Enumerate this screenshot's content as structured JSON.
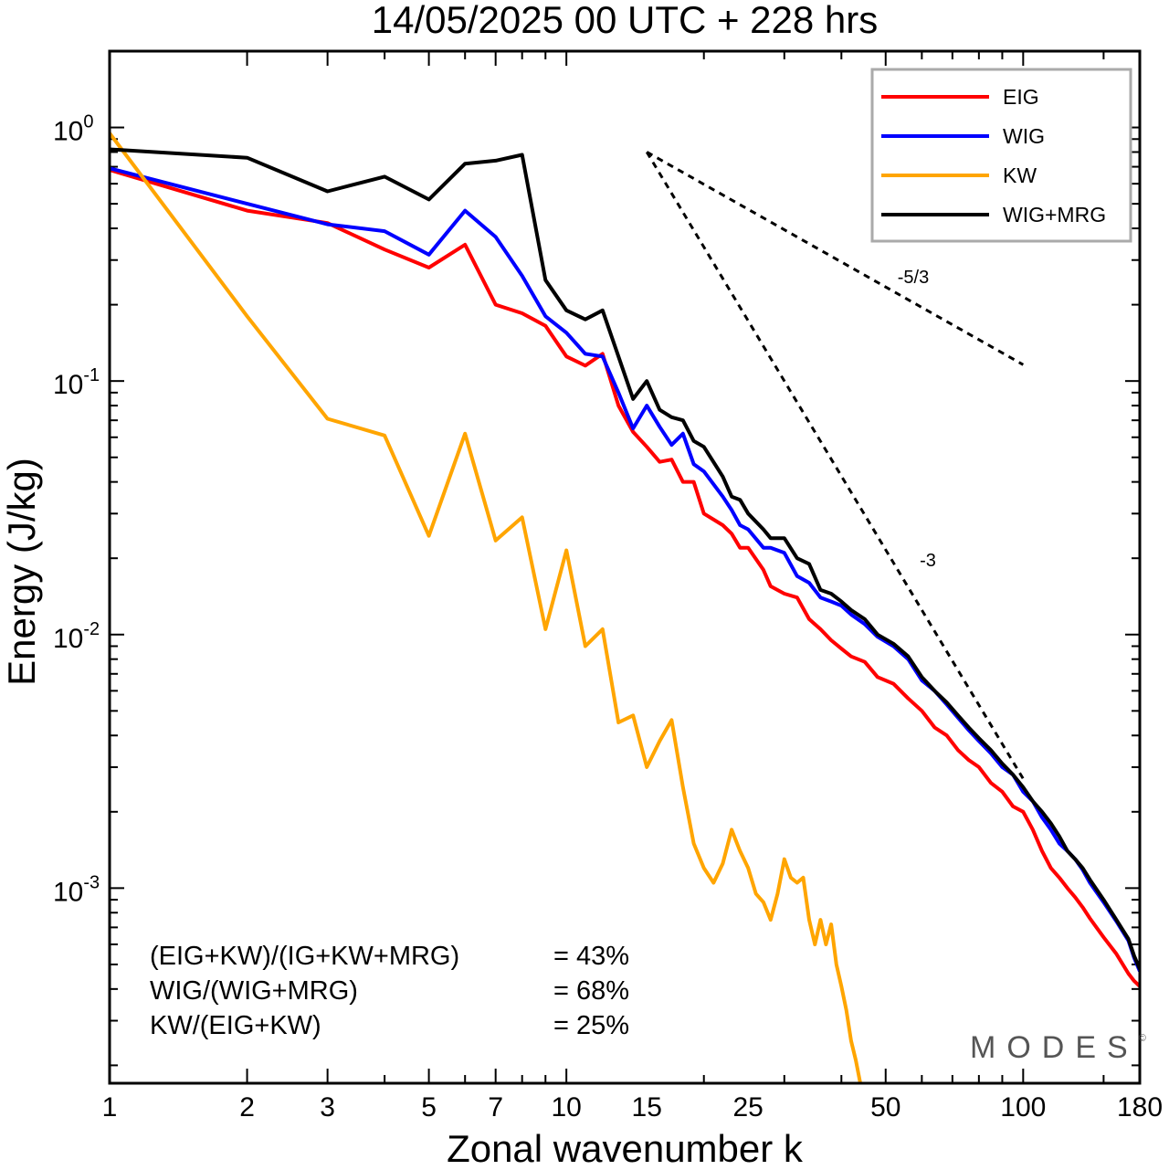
{
  "chart_data": {
    "type": "line",
    "title": "14/05/2025  00 UTC  + 228 hrs",
    "xlabel": "Zonal wavenumber k",
    "ylabel": "Energy (J/kg)",
    "xscale": "log",
    "yscale": "log",
    "xlim": [
      1,
      180
    ],
    "ylim": [
      0.00017,
      2.0
    ],
    "xticks": [
      1,
      2,
      3,
      5,
      7,
      10,
      15,
      25,
      50,
      100,
      180
    ],
    "yticks": [
      {
        "value": 1,
        "base": "10",
        "exp": "0"
      },
      {
        "value": 0.1,
        "base": "10",
        "exp": "-1"
      },
      {
        "value": 0.01,
        "base": "10",
        "exp": "-2"
      },
      {
        "value": 0.001,
        "base": "10",
        "exp": "-3"
      }
    ],
    "legend_position": "top-right",
    "series": [
      {
        "name": "EIG",
        "color": "#ff0000",
        "points": [
          [
            1,
            0.68
          ],
          [
            2,
            0.47
          ],
          [
            3,
            0.42
          ],
          [
            4,
            0.33
          ],
          [
            5,
            0.28
          ],
          [
            6,
            0.345
          ],
          [
            7,
            0.2
          ],
          [
            8,
            0.185
          ],
          [
            9,
            0.165
          ],
          [
            10,
            0.125
          ],
          [
            11,
            0.115
          ],
          [
            12,
            0.128
          ],
          [
            13,
            0.08
          ],
          [
            14,
            0.063
          ],
          [
            15,
            0.055
          ],
          [
            16,
            0.048
          ],
          [
            17,
            0.049
          ],
          [
            18,
            0.04
          ],
          [
            19,
            0.04
          ],
          [
            20,
            0.03
          ],
          [
            22,
            0.027
          ],
          [
            23,
            0.025
          ],
          [
            24,
            0.022
          ],
          [
            25,
            0.022
          ],
          [
            27,
            0.018
          ],
          [
            28,
            0.0155
          ],
          [
            30,
            0.0145
          ],
          [
            32,
            0.014
          ],
          [
            34,
            0.0115
          ],
          [
            36,
            0.0105
          ],
          [
            38,
            0.0095
          ],
          [
            40,
            0.0088
          ],
          [
            42,
            0.0082
          ],
          [
            45,
            0.0078
          ],
          [
            48,
            0.0068
          ],
          [
            52,
            0.0064
          ],
          [
            56,
            0.0056
          ],
          [
            60,
            0.005
          ],
          [
            64,
            0.0043
          ],
          [
            68,
            0.004
          ],
          [
            72,
            0.0035
          ],
          [
            76,
            0.0032
          ],
          [
            80,
            0.003
          ],
          [
            85,
            0.0026
          ],
          [
            90,
            0.0024
          ],
          [
            95,
            0.0021
          ],
          [
            100,
            0.002
          ],
          [
            105,
            0.0017
          ],
          [
            110,
            0.0014
          ],
          [
            115,
            0.0012
          ],
          [
            120,
            0.0011
          ],
          [
            125,
            0.001
          ],
          [
            130,
            0.00092
          ],
          [
            135,
            0.00084
          ],
          [
            140,
            0.00076
          ],
          [
            150,
            0.00064
          ],
          [
            160,
            0.00055
          ],
          [
            170,
            0.00046
          ],
          [
            175,
            0.00043
          ],
          [
            180,
            0.00041
          ]
        ]
      },
      {
        "name": "WIG",
        "color": "#0000ff",
        "points": [
          [
            1,
            0.69
          ],
          [
            2,
            0.5
          ],
          [
            3,
            0.415
          ],
          [
            4,
            0.39
          ],
          [
            5,
            0.315
          ],
          [
            6,
            0.47
          ],
          [
            7,
            0.37
          ],
          [
            8,
            0.26
          ],
          [
            9,
            0.18
          ],
          [
            10,
            0.155
          ],
          [
            11,
            0.128
          ],
          [
            12,
            0.125
          ],
          [
            13,
            0.09
          ],
          [
            14,
            0.065
          ],
          [
            15,
            0.08
          ],
          [
            16,
            0.066
          ],
          [
            17,
            0.056
          ],
          [
            18,
            0.062
          ],
          [
            19,
            0.047
          ],
          [
            20,
            0.044
          ],
          [
            22,
            0.035
          ],
          [
            23,
            0.031
          ],
          [
            24,
            0.027
          ],
          [
            25,
            0.026
          ],
          [
            27,
            0.022
          ],
          [
            28,
            0.022
          ],
          [
            30,
            0.021
          ],
          [
            32,
            0.017
          ],
          [
            34,
            0.016
          ],
          [
            36,
            0.014
          ],
          [
            38,
            0.0135
          ],
          [
            40,
            0.013
          ],
          [
            42,
            0.012
          ],
          [
            45,
            0.011
          ],
          [
            48,
            0.0098
          ],
          [
            52,
            0.009
          ],
          [
            56,
            0.008
          ],
          [
            60,
            0.0066
          ],
          [
            64,
            0.006
          ],
          [
            68,
            0.0053
          ],
          [
            72,
            0.0047
          ],
          [
            76,
            0.0042
          ],
          [
            80,
            0.0038
          ],
          [
            85,
            0.0034
          ],
          [
            90,
            0.003
          ],
          [
            95,
            0.0028
          ],
          [
            100,
            0.0024
          ],
          [
            105,
            0.0022
          ],
          [
            110,
            0.0019
          ],
          [
            115,
            0.0017
          ],
          [
            120,
            0.0015
          ],
          [
            125,
            0.0014
          ],
          [
            130,
            0.0013
          ],
          [
            135,
            0.00118
          ],
          [
            140,
            0.00105
          ],
          [
            150,
            0.00088
          ],
          [
            160,
            0.00074
          ],
          [
            170,
            0.00062
          ],
          [
            175,
            0.00053
          ],
          [
            180,
            0.00047
          ]
        ]
      },
      {
        "name": "KW",
        "color": "#ffa500",
        "points": [
          [
            1,
            0.95
          ],
          [
            2,
            0.18
          ],
          [
            3,
            0.071
          ],
          [
            4,
            0.061
          ],
          [
            5,
            0.0245
          ],
          [
            6,
            0.062
          ],
          [
            7,
            0.0235
          ],
          [
            8,
            0.029
          ],
          [
            9,
            0.0105
          ],
          [
            10,
            0.0215
          ],
          [
            11,
            0.009
          ],
          [
            12,
            0.0105
          ],
          [
            13,
            0.0045
          ],
          [
            14,
            0.0048
          ],
          [
            15,
            0.003
          ],
          [
            16,
            0.0038
          ],
          [
            17,
            0.0046
          ],
          [
            18,
            0.0025
          ],
          [
            19,
            0.0015
          ],
          [
            20,
            0.0012
          ],
          [
            21,
            0.00105
          ],
          [
            22,
            0.00125
          ],
          [
            23,
            0.0017
          ],
          [
            24,
            0.0014
          ],
          [
            25,
            0.0012
          ],
          [
            26,
            0.00095
          ],
          [
            27,
            0.00088
          ],
          [
            28,
            0.00075
          ],
          [
            29,
            0.00095
          ],
          [
            30,
            0.0013
          ],
          [
            31,
            0.0011
          ],
          [
            32,
            0.00105
          ],
          [
            33,
            0.0011
          ],
          [
            34,
            0.00075
          ],
          [
            35,
            0.0006
          ],
          [
            36,
            0.00075
          ],
          [
            37,
            0.0006
          ],
          [
            38,
            0.00072
          ],
          [
            39,
            0.0005
          ],
          [
            40,
            0.00041
          ],
          [
            41,
            0.00033
          ],
          [
            42,
            0.00025
          ],
          [
            43,
            0.00021
          ],
          [
            44,
            0.00017
          ]
        ]
      },
      {
        "name": "WIG+MRG",
        "color": "#000000",
        "points": [
          [
            1,
            0.82
          ],
          [
            2,
            0.76
          ],
          [
            3,
            0.56
          ],
          [
            4,
            0.64
          ],
          [
            5,
            0.52
          ],
          [
            6,
            0.72
          ],
          [
            7,
            0.74
          ],
          [
            8,
            0.78
          ],
          [
            9,
            0.25
          ],
          [
            10,
            0.19
          ],
          [
            11,
            0.175
          ],
          [
            12,
            0.19
          ],
          [
            13,
            0.125
          ],
          [
            14,
            0.085
          ],
          [
            15,
            0.1
          ],
          [
            16,
            0.077
          ],
          [
            17,
            0.072
          ],
          [
            18,
            0.07
          ],
          [
            19,
            0.058
          ],
          [
            20,
            0.055
          ],
          [
            22,
            0.042
          ],
          [
            23,
            0.035
          ],
          [
            24,
            0.034
          ],
          [
            25,
            0.03
          ],
          [
            27,
            0.026
          ],
          [
            28,
            0.024
          ],
          [
            30,
            0.024
          ],
          [
            32,
            0.02
          ],
          [
            34,
            0.019
          ],
          [
            36,
            0.015
          ],
          [
            38,
            0.0145
          ],
          [
            40,
            0.0135
          ],
          [
            42,
            0.0125
          ],
          [
            45,
            0.0115
          ],
          [
            48,
            0.01
          ],
          [
            52,
            0.0092
          ],
          [
            56,
            0.0082
          ],
          [
            60,
            0.0068
          ],
          [
            64,
            0.006
          ],
          [
            68,
            0.0054
          ],
          [
            72,
            0.0048
          ],
          [
            76,
            0.0043
          ],
          [
            80,
            0.0039
          ],
          [
            85,
            0.0035
          ],
          [
            90,
            0.0031
          ],
          [
            95,
            0.0028
          ],
          [
            100,
            0.0025
          ],
          [
            105,
            0.0022
          ],
          [
            110,
            0.002
          ],
          [
            115,
            0.0018
          ],
          [
            120,
            0.0016
          ],
          [
            125,
            0.0014
          ],
          [
            130,
            0.0013
          ],
          [
            135,
            0.0012
          ],
          [
            140,
            0.00108
          ],
          [
            150,
            0.0009
          ],
          [
            160,
            0.00075
          ],
          [
            170,
            0.00063
          ],
          [
            175,
            0.00054
          ],
          [
            180,
            0.00048
          ]
        ]
      }
    ],
    "reference_lines": [
      {
        "label": "-5/3",
        "points": [
          [
            15,
            0.8
          ],
          [
            100,
            0.116
          ]
        ]
      },
      {
        "label": "-3",
        "points": [
          [
            15,
            0.8
          ],
          [
            100,
            0.0027
          ]
        ]
      }
    ],
    "annotations": [
      {
        "label": "(EIG+KW)/(IG+KW+MRG)",
        "value": "= 43%"
      },
      {
        "label": "WIG/(WIG+MRG)",
        "value": "= 68%"
      },
      {
        "label": "KW/(EIG+KW)",
        "value": "= 25%"
      }
    ],
    "grid": false
  },
  "brand": {
    "name": "MODES",
    "mark": "©"
  }
}
